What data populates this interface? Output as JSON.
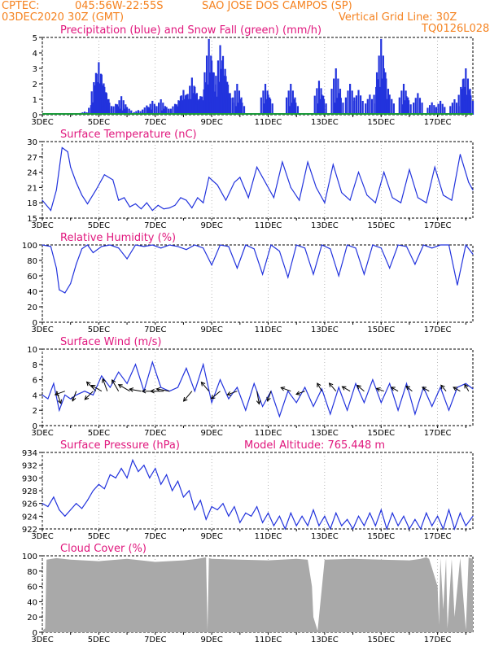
{
  "header": {
    "line1_left": "CPTEC:",
    "coords": "045:56W-22:55S",
    "location": "SAO JOSE DOS CAMPOS (SP)",
    "line2_left": "03DEC2020 30Z (GMT)",
    "grid_note": "Vertical Grid Line: 30Z",
    "model_code": "TQ0126L028"
  },
  "model_altitude": "Model Altitude: 765.448 m",
  "x_axis": {
    "tick_labels": [
      "3DEC",
      "5DEC",
      "7DEC",
      "9DEC",
      "11DEC",
      "13DEC",
      "15DEC",
      "17DEC"
    ],
    "tick_days": [
      0,
      2,
      4,
      6,
      8,
      10,
      12,
      14
    ],
    "day_span": [
      0,
      15.25
    ],
    "vertical_grid_day": 5.75
  },
  "colors": {
    "header": "#f5821f",
    "title": "#e0177d",
    "line": "#2233dd",
    "snow": "#1a9a3a",
    "cloud": "#a9a9a9",
    "arrow": "#000000"
  },
  "chart_data": [
    {
      "type": "bar",
      "title": "Precipitation (blue) and Snow Fall (green) (mm/h)",
      "ylim": [
        0,
        5
      ],
      "yticks": [
        "0",
        "1",
        "2",
        "3",
        "4",
        "5"
      ],
      "series": [
        {
          "name": "Precipitation",
          "points": [
            [
              1.5,
              0.2
            ],
            [
              1.8,
              0.8
            ],
            [
              1.9,
              2.7
            ],
            [
              2.0,
              3.4
            ],
            [
              2.1,
              2.6
            ],
            [
              2.2,
              1.8
            ],
            [
              2.3,
              1.0
            ],
            [
              2.6,
              0.7
            ],
            [
              2.8,
              1.2
            ],
            [
              3.0,
              0.5
            ],
            [
              3.4,
              0.3
            ],
            [
              3.7,
              0.6
            ],
            [
              3.9,
              0.9
            ],
            [
              4.2,
              1.0
            ],
            [
              4.4,
              0.5
            ],
            [
              4.7,
              0.7
            ],
            [
              4.9,
              1.2
            ],
            [
              5.0,
              1.6
            ],
            [
              5.1,
              1.3
            ],
            [
              5.3,
              2.4
            ],
            [
              5.4,
              1.8
            ],
            [
              5.6,
              1.2
            ],
            [
              5.8,
              2.1
            ],
            [
              5.9,
              4.9
            ],
            [
              6.0,
              3.5
            ],
            [
              6.1,
              1.5
            ],
            [
              6.3,
              4.5
            ],
            [
              6.4,
              3.8
            ],
            [
              6.5,
              2.5
            ],
            [
              6.6,
              1.4
            ],
            [
              6.9,
              2.0
            ],
            [
              7.0,
              1.0
            ],
            [
              7.9,
              2.0
            ],
            [
              8.0,
              1.3
            ],
            [
              8.8,
              2.0
            ],
            [
              8.9,
              1.0
            ],
            [
              9.8,
              2.2
            ],
            [
              9.9,
              1.3
            ],
            [
              10.4,
              3.0
            ],
            [
              10.5,
              1.4
            ],
            [
              10.9,
              2.0
            ],
            [
              11.2,
              1.6
            ],
            [
              11.6,
              1.3
            ],
            [
              11.9,
              2.3
            ],
            [
              12.0,
              4.9
            ],
            [
              12.1,
              3.0
            ],
            [
              12.3,
              1.3
            ],
            [
              12.8,
              2.0
            ],
            [
              12.9,
              1.2
            ],
            [
              13.3,
              1.4
            ],
            [
              13.8,
              0.8
            ],
            [
              14.1,
              0.9
            ],
            [
              14.6,
              1.0
            ],
            [
              14.9,
              2.3
            ],
            [
              15.0,
              3.0
            ],
            [
              15.1,
              1.6
            ]
          ]
        },
        {
          "name": "Snow Fall",
          "points": [
            [
              0,
              0
            ],
            [
              15.25,
              0
            ]
          ]
        }
      ]
    },
    {
      "type": "line",
      "title": "Surface Temperature (nC)",
      "ylim": [
        15,
        30
      ],
      "yticks": [
        "15",
        "18",
        "21",
        "24",
        "27",
        "30"
      ],
      "x": [
        0,
        0.3,
        0.5,
        0.7,
        0.9,
        1.0,
        1.2,
        1.4,
        1.6,
        1.9,
        2.2,
        2.5,
        2.7,
        2.9,
        3.1,
        3.3,
        3.5,
        3.7,
        3.9,
        4.1,
        4.3,
        4.5,
        4.7,
        4.9,
        5.1,
        5.3,
        5.5,
        5.7,
        5.9,
        6.2,
        6.5,
        6.8,
        7.0,
        7.3,
        7.6,
        7.9,
        8.2,
        8.5,
        8.8,
        9.1,
        9.4,
        9.7,
        10.0,
        10.3,
        10.6,
        10.9,
        11.2,
        11.5,
        11.8,
        12.1,
        12.4,
        12.7,
        13.0,
        13.3,
        13.6,
        13.9,
        14.2,
        14.5,
        14.8,
        15.1,
        15.25
      ],
      "y": [
        18.5,
        16.5,
        20.5,
        28.8,
        28.0,
        25.0,
        22.0,
        19.5,
        17.8,
        20.5,
        23.5,
        22.5,
        18.5,
        19.0,
        17.2,
        17.8,
        16.8,
        18.0,
        16.5,
        17.5,
        16.8,
        17.0,
        17.5,
        19.0,
        18.5,
        17.0,
        19.0,
        18.0,
        23.0,
        21.5,
        18.5,
        22.0,
        23.0,
        19.0,
        25.0,
        22.0,
        19.0,
        26.0,
        21.0,
        18.5,
        26.0,
        21.0,
        18.0,
        25.5,
        20.0,
        18.5,
        24.0,
        19.5,
        18.0,
        24.0,
        19.0,
        18.0,
        24.5,
        19.0,
        18.0,
        25.0,
        19.5,
        18.5,
        27.5,
        22.0,
        20.5
      ]
    },
    {
      "type": "line",
      "title": "Relative Humidity (%)",
      "ylim": [
        0,
        100
      ],
      "yticks": [
        "0",
        "20",
        "40",
        "60",
        "80",
        "100"
      ],
      "x": [
        0,
        0.3,
        0.5,
        0.6,
        0.8,
        1.0,
        1.2,
        1.4,
        1.6,
        1.8,
        2.1,
        2.4,
        2.7,
        3.0,
        3.3,
        3.6,
        3.9,
        4.2,
        4.5,
        4.8,
        5.1,
        5.4,
        5.7,
        6.0,
        6.3,
        6.6,
        6.9,
        7.2,
        7.5,
        7.8,
        8.1,
        8.4,
        8.7,
        9.0,
        9.3,
        9.6,
        9.9,
        10.2,
        10.5,
        10.8,
        11.1,
        11.4,
        11.7,
        12.0,
        12.3,
        12.6,
        12.9,
        13.2,
        13.5,
        13.8,
        14.1,
        14.4,
        14.7,
        15.0,
        15.25
      ],
      "y": [
        100,
        98,
        70,
        42,
        38,
        50,
        75,
        95,
        100,
        90,
        98,
        100,
        96,
        82,
        100,
        98,
        100,
        96,
        100,
        98,
        94,
        100,
        96,
        74,
        100,
        98,
        70,
        100,
        95,
        62,
        100,
        92,
        58,
        100,
        96,
        62,
        100,
        95,
        60,
        100,
        96,
        62,
        100,
        96,
        70,
        100,
        98,
        75,
        100,
        96,
        100,
        100,
        48,
        100,
        88
      ]
    },
    {
      "type": "line",
      "title": "Surface Wind (m/s)",
      "ylim": [
        0,
        10
      ],
      "yticks": [
        "0",
        "2",
        "4",
        "6",
        "8",
        "10"
      ],
      "x": [
        0,
        0.2,
        0.4,
        0.6,
        0.8,
        1.0,
        1.2,
        1.5,
        1.8,
        2.1,
        2.4,
        2.7,
        3.0,
        3.3,
        3.6,
        3.9,
        4.2,
        4.5,
        4.8,
        5.1,
        5.4,
        5.7,
        6.0,
        6.3,
        6.6,
        6.9,
        7.2,
        7.5,
        7.8,
        8.1,
        8.4,
        8.7,
        9.0,
        9.3,
        9.6,
        9.9,
        10.2,
        10.5,
        10.8,
        11.1,
        11.4,
        11.7,
        12.0,
        12.3,
        12.6,
        12.9,
        13.2,
        13.5,
        13.8,
        14.1,
        14.4,
        14.7,
        15.0,
        15.25
      ],
      "y": [
        4.0,
        3.5,
        5.5,
        2.0,
        4.0,
        3.5,
        4.0,
        4.5,
        4.0,
        6.5,
        5.0,
        7.0,
        5.5,
        8.0,
        4.5,
        8.3,
        5.0,
        4.5,
        5.0,
        7.5,
        4.5,
        8.0,
        3.0,
        6.0,
        3.5,
        5.0,
        2.0,
        5.5,
        2.5,
        4.5,
        1.2,
        4.5,
        3.0,
        5.0,
        2.5,
        4.8,
        1.5,
        5.0,
        2.0,
        5.5,
        3.0,
        6.0,
        3.0,
        5.5,
        2.0,
        5.5,
        1.5,
        5.0,
        2.5,
        5.0,
        2.0,
        5.0,
        5.5,
        4.8
      ]
    },
    {
      "type": "line",
      "title": "Surface Pressure (hPa)",
      "ylim": [
        922,
        934
      ],
      "yticks": [
        "922",
        "924",
        "926",
        "928",
        "930",
        "932",
        "934"
      ],
      "x": [
        0,
        0.2,
        0.4,
        0.6,
        0.8,
        1.0,
        1.2,
        1.4,
        1.6,
        1.8,
        2.0,
        2.2,
        2.4,
        2.6,
        2.8,
        3.0,
        3.2,
        3.4,
        3.6,
        3.8,
        4.0,
        4.2,
        4.4,
        4.6,
        4.8,
        5.0,
        5.2,
        5.4,
        5.6,
        5.8,
        6.0,
        6.2,
        6.4,
        6.6,
        6.8,
        7.0,
        7.2,
        7.4,
        7.6,
        7.8,
        8.0,
        8.2,
        8.4,
        8.6,
        8.8,
        9.0,
        9.2,
        9.4,
        9.6,
        9.8,
        10.0,
        10.2,
        10.4,
        10.6,
        10.8,
        11.0,
        11.2,
        11.4,
        11.6,
        11.8,
        12.0,
        12.2,
        12.4,
        12.6,
        12.8,
        13.0,
        13.2,
        13.4,
        13.6,
        13.8,
        14.0,
        14.2,
        14.4,
        14.6,
        14.8,
        15.0,
        15.25
      ],
      "y": [
        926.0,
        925.5,
        927.0,
        925.0,
        924.0,
        925.0,
        926.0,
        925.2,
        926.5,
        928.0,
        929.0,
        928.3,
        930.5,
        930.0,
        931.5,
        930.0,
        932.8,
        931.0,
        932.0,
        930.0,
        931.5,
        929.0,
        930.5,
        928.0,
        929.5,
        927.0,
        928.0,
        925.0,
        926.5,
        923.5,
        925.5,
        925.0,
        926.0,
        924.0,
        925.5,
        923.0,
        924.5,
        924.0,
        925.5,
        923.0,
        924.5,
        922.5,
        924.0,
        922.0,
        924.5,
        922.5,
        924.0,
        922.5,
        925.0,
        922.5,
        924.0,
        922.0,
        924.5,
        922.5,
        923.5,
        922.0,
        924.0,
        922.5,
        924.5,
        922.5,
        925.0,
        922.0,
        924.5,
        922.5,
        924.0,
        922.0,
        923.5,
        922.0,
        924.5,
        922.5,
        924.0,
        922.0,
        925.0,
        922.0,
        924.5,
        922.5,
        924.0
      ]
    },
    {
      "type": "area",
      "title": "Cloud Cover (%)",
      "ylim": [
        0,
        100
      ],
      "yticks": [
        "0",
        "20",
        "40",
        "60",
        "80",
        "100"
      ],
      "x": [
        0,
        0.1,
        0.15,
        0.5,
        1.0,
        2.0,
        3.0,
        4.0,
        5.0,
        5.5,
        5.8,
        5.85,
        5.9,
        6.0,
        7.0,
        8.0,
        9.0,
        9.4,
        9.55,
        9.6,
        9.75,
        10.0,
        11.0,
        12.0,
        13.0,
        13.4,
        13.6,
        13.7,
        14.0,
        14.05,
        14.1,
        14.2,
        14.3,
        14.35,
        14.5,
        14.6,
        14.8,
        15.0,
        15.1,
        15.15,
        15.25
      ],
      "y": [
        2,
        5,
        95,
        97,
        95,
        93,
        96,
        92,
        94,
        96,
        98,
        2,
        97,
        96,
        95,
        94,
        96,
        95,
        60,
        20,
        2,
        95,
        96,
        95,
        94,
        96,
        98,
        96,
        60,
        10,
        97,
        30,
        97,
        5,
        96,
        20,
        97,
        3,
        98,
        97,
        96
      ]
    }
  ],
  "wind_vectors": [
    {
      "day": 0.5,
      "dir": 160,
      "len": 1.0
    },
    {
      "day": 0.8,
      "dir": 250,
      "len": 0.8
    },
    {
      "day": 1.2,
      "dir": 200,
      "len": 0.8
    },
    {
      "day": 1.8,
      "dir": 225,
      "len": 0.9
    },
    {
      "day": 1.9,
      "dir": 315,
      "len": 1.0
    },
    {
      "day": 2.1,
      "dir": 300,
      "len": 0.9
    },
    {
      "day": 2.3,
      "dir": 340,
      "len": 1.0
    },
    {
      "day": 2.7,
      "dir": 330,
      "len": 1.0
    },
    {
      "day": 3.1,
      "dir": 300,
      "len": 1.0
    },
    {
      "day": 3.5,
      "dir": 280,
      "len": 0.9
    },
    {
      "day": 4.0,
      "dir": 270,
      "len": 1.0
    },
    {
      "day": 4.3,
      "dir": 270,
      "len": 1.0
    },
    {
      "day": 4.5,
      "dir": 280,
      "len": 1.0
    },
    {
      "day": 5.3,
      "dir": 220,
      "len": 1.0
    },
    {
      "day": 5.9,
      "dir": 320,
      "len": 0.9
    },
    {
      "day": 6.3,
      "dir": 230,
      "len": 0.9
    },
    {
      "day": 6.9,
      "dir": 250,
      "len": 0.8
    },
    {
      "day": 7.6,
      "dir": 170,
      "len": 1.0
    },
    {
      "day": 8.1,
      "dir": 200,
      "len": 0.8
    },
    {
      "day": 8.8,
      "dir": 290,
      "len": 0.8
    },
    {
      "day": 9.3,
      "dir": 250,
      "len": 0.7
    },
    {
      "day": 9.9,
      "dir": 330,
      "len": 0.7
    },
    {
      "day": 10.4,
      "dir": 320,
      "len": 0.8
    },
    {
      "day": 10.9,
      "dir": 300,
      "len": 0.7
    },
    {
      "day": 11.4,
      "dir": 310,
      "len": 0.7
    },
    {
      "day": 12.1,
      "dir": 290,
      "len": 0.6
    },
    {
      "day": 12.6,
      "dir": 300,
      "len": 0.6
    },
    {
      "day": 13.1,
      "dir": 310,
      "len": 0.6
    },
    {
      "day": 13.7,
      "dir": 300,
      "len": 0.6
    },
    {
      "day": 14.3,
      "dir": 320,
      "len": 0.6
    },
    {
      "day": 14.8,
      "dir": 300,
      "len": 0.6
    },
    {
      "day": 15.1,
      "dir": 330,
      "len": 0.6
    }
  ]
}
